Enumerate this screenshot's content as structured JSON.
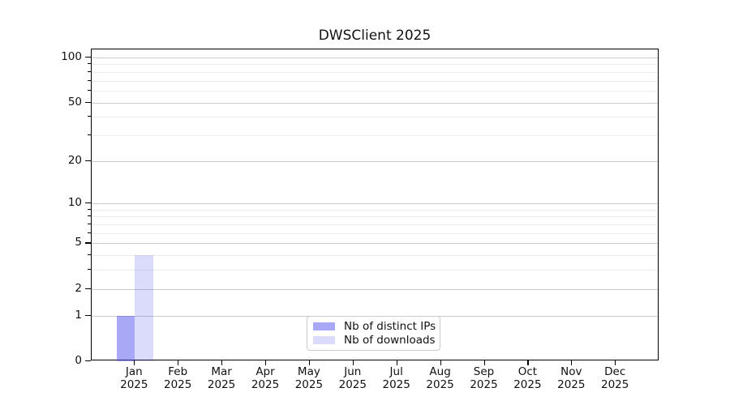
{
  "chart_data": {
    "type": "bar",
    "title": "DWSClient 2025",
    "categories": [
      "Jan",
      "Feb",
      "Mar",
      "Apr",
      "May",
      "Jun",
      "Jul",
      "Aug",
      "Sep",
      "Oct",
      "Nov",
      "Dec"
    ],
    "year_label": "2025",
    "series": [
      {
        "name": "Nb of distinct IPs",
        "color": "rgba(85,85,238,0.51)",
        "values": [
          1,
          0,
          0,
          0,
          0,
          0,
          0,
          0,
          0,
          0,
          0,
          0
        ]
      },
      {
        "name": "Nb of downloads",
        "color": "rgba(85,85,238,0.21)",
        "values": [
          4,
          0,
          0,
          0,
          0,
          0,
          0,
          0,
          0,
          0,
          0,
          0
        ]
      }
    ],
    "yscale": "log1p",
    "yticks": [
      0,
      1,
      2,
      5,
      10,
      20,
      50,
      100
    ],
    "minor_yticks": [
      3,
      4,
      6,
      7,
      8,
      9,
      30,
      40,
      60,
      70,
      80,
      90
    ],
    "ylim": [
      0,
      113
    ],
    "grid": true,
    "legend_position": "lower center",
    "colors": {
      "grid_major": "#c9c9c9",
      "grid_minor": "#ececec",
      "axis": "#000000",
      "text": "#111111",
      "legend_border": "#cccccc"
    }
  }
}
